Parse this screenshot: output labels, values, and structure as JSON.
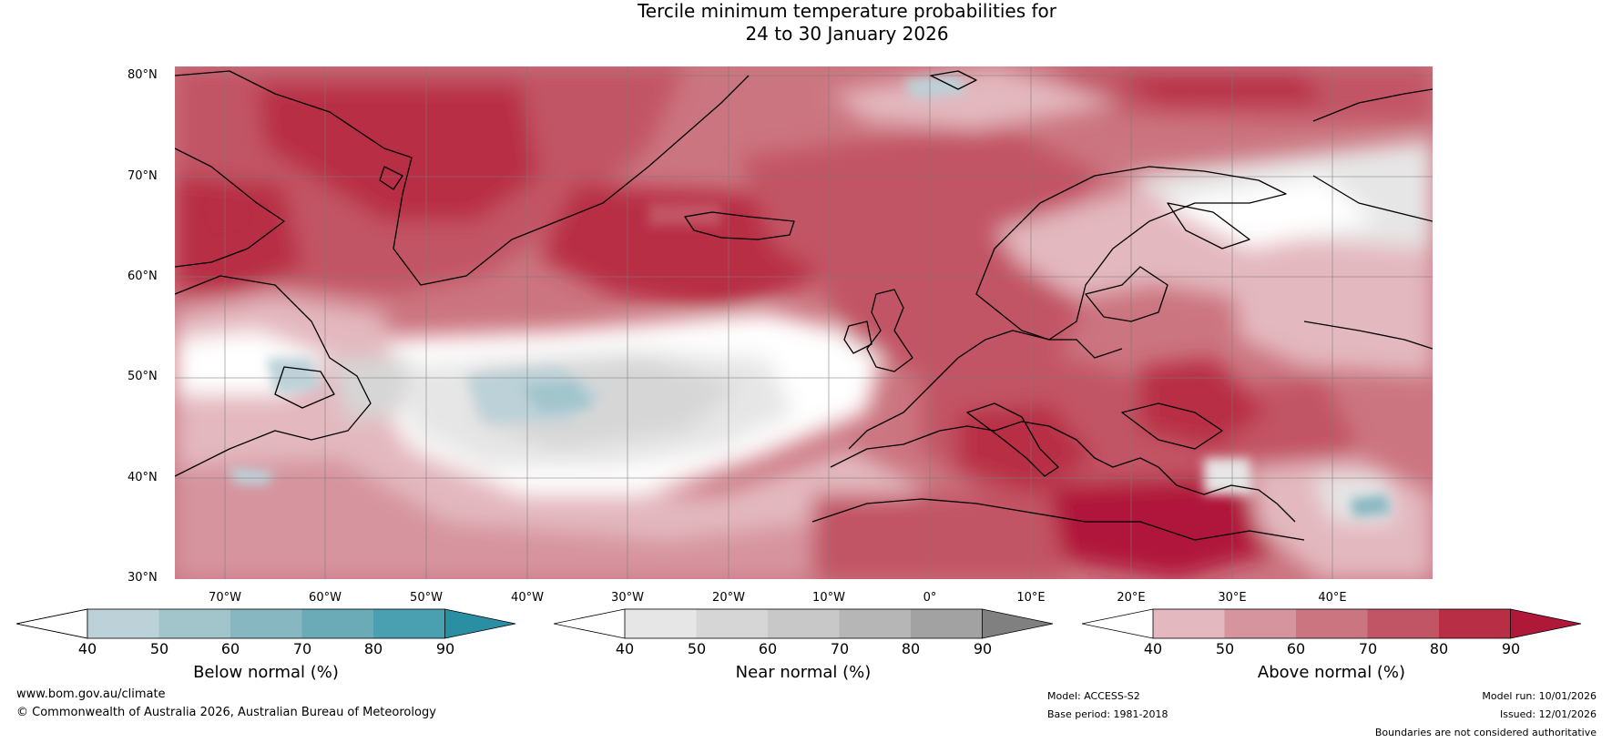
{
  "title": {
    "line1": "Tercile minimum temperature probabilities for",
    "line2": "24 to 30 January 2026"
  },
  "map": {
    "lat_labels": [
      "80°N",
      "70°N",
      "60°N",
      "50°N",
      "40°N",
      "30°N"
    ],
    "lon_labels": [
      "70°W",
      "60°W",
      "50°W",
      "40°W",
      "30°W",
      "20°W",
      "10°W",
      "0°",
      "10°E",
      "20°E",
      "30°E",
      "40°E"
    ]
  },
  "legends": [
    {
      "name": "below",
      "label": "Below normal (%)",
      "ticks": [
        "40",
        "50",
        "60",
        "70",
        "80",
        "90"
      ],
      "colors": [
        "#ffffff",
        "#bcd2d8",
        "#a2c5cc",
        "#87b8c2",
        "#6aabb7",
        "#4aa0b0",
        "#2a8fa3"
      ]
    },
    {
      "name": "near",
      "label": "Near normal (%)",
      "ticks": [
        "40",
        "50",
        "60",
        "70",
        "80",
        "90"
      ],
      "colors": [
        "#ffffff",
        "#e6e6e6",
        "#d6d6d6",
        "#c8c8c8",
        "#b6b6b6",
        "#a2a2a2",
        "#808080"
      ]
    },
    {
      "name": "above",
      "label": "Above normal (%)",
      "ticks": [
        "40",
        "50",
        "60",
        "70",
        "80",
        "90"
      ],
      "colors": [
        "#ffffff",
        "#e3b8bf",
        "#d6949f",
        "#cb7580",
        "#c25565",
        "#b82f45",
        "#b0183a"
      ]
    }
  ],
  "footer": {
    "website": "www.bom.gov.au/climate",
    "copyright": "© Commonwealth of Australia 2026, Australian Bureau of Meteorology",
    "model": "Model: ACCESS-S2",
    "base_period": "Base period: 1981-2018",
    "model_run": "Model run: 10/01/2026",
    "issued": "Issued: 12/01/2026",
    "disclaimer": "Boundaries are not considered authoritative"
  }
}
